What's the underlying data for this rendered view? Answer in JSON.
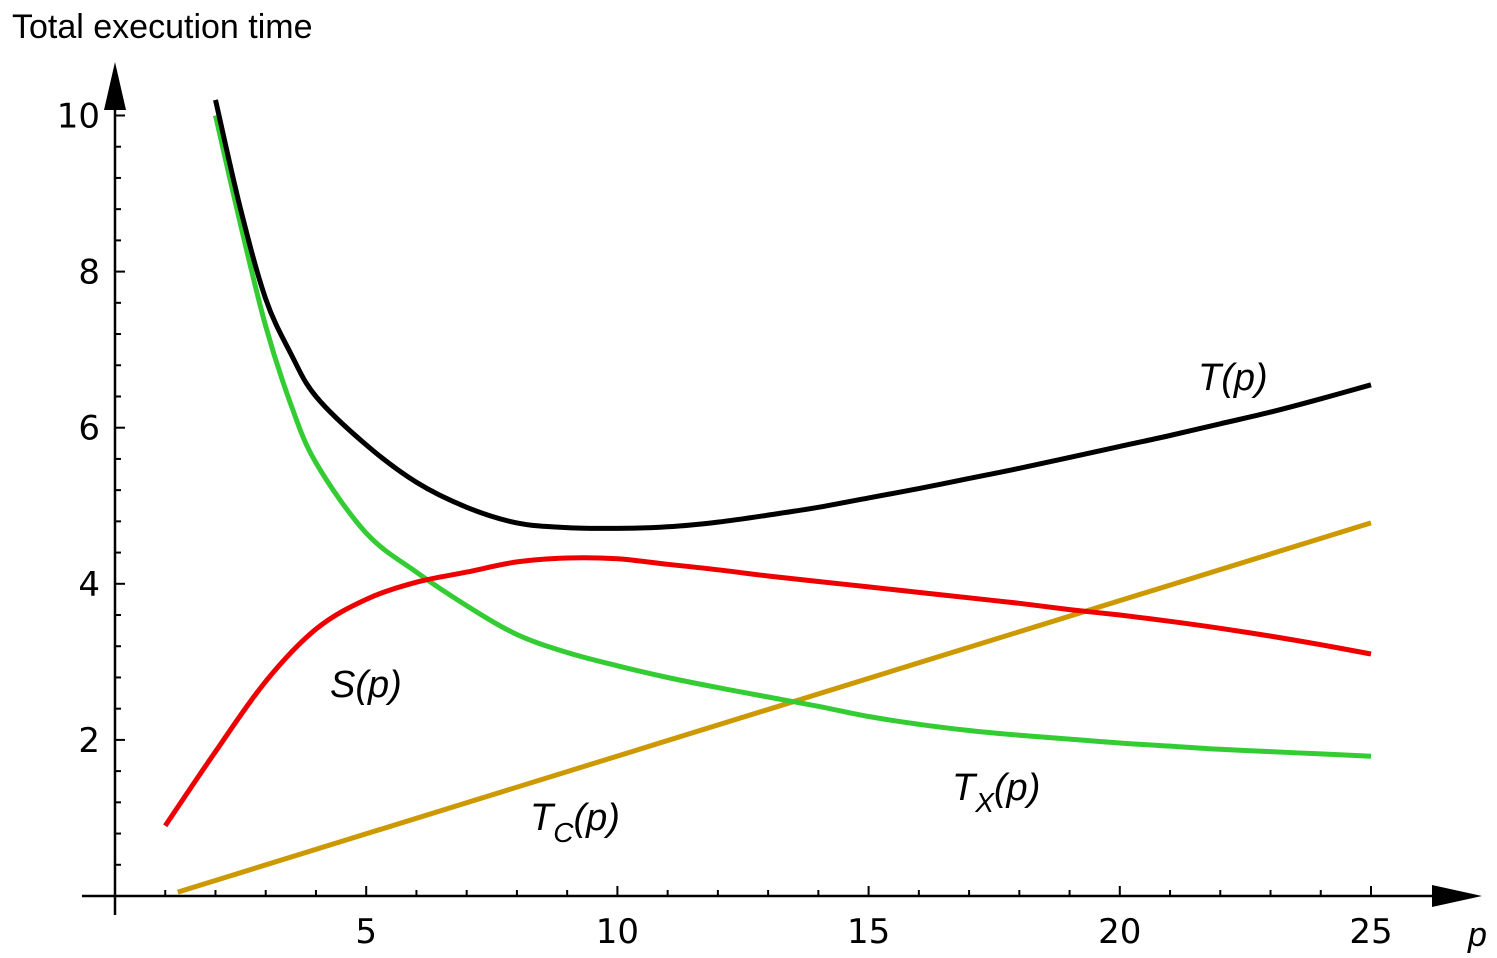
{
  "chart_data": {
    "type": "line",
    "title": "",
    "ylabel": "Total execution time",
    "xlabel": "p",
    "xlim": [
      0,
      25.5
    ],
    "ylim": [
      0,
      10.3
    ],
    "x_ticks": [
      5,
      10,
      15,
      20,
      25
    ],
    "x_tick_labels": [
      "5",
      "10",
      "15",
      "20",
      "25"
    ],
    "y_ticks": [
      2,
      4,
      6,
      8,
      10
    ],
    "y_tick_labels": [
      "2",
      "4",
      "6",
      "8",
      "10"
    ],
    "grid": false,
    "legend": "none",
    "series": [
      {
        "key": "T",
        "label_main": "T(p)",
        "label_sub": "",
        "label_tail": "",
        "color": "#000000",
        "x": [
          2,
          2.5,
          3,
          3.5,
          4,
          5,
          6,
          7,
          8,
          9,
          10,
          11,
          12,
          13,
          14,
          15,
          16,
          17,
          18,
          19,
          20,
          21,
          22,
          23,
          24,
          25
        ],
        "y": [
          10.2,
          8.8,
          7.65,
          6.95,
          6.4,
          5.78,
          5.3,
          4.98,
          4.78,
          4.72,
          4.71,
          4.73,
          4.79,
          4.88,
          4.98,
          5.1,
          5.22,
          5.35,
          5.48,
          5.62,
          5.76,
          5.9,
          6.05,
          6.2,
          6.37,
          6.55
        ]
      },
      {
        "key": "Tx",
        "label_main": "T",
        "label_sub": "X",
        "label_tail": "(p)",
        "color": "#33cc33",
        "x": [
          2,
          2.5,
          3,
          3.5,
          4,
          5,
          6,
          7,
          8,
          9,
          10,
          11,
          12,
          13,
          14,
          15,
          16,
          17,
          18,
          19,
          20,
          21,
          22,
          23,
          24,
          25
        ],
        "y": [
          10.0,
          8.6,
          7.3,
          6.3,
          5.55,
          4.65,
          4.15,
          3.72,
          3.35,
          3.12,
          2.95,
          2.8,
          2.67,
          2.55,
          2.43,
          2.3,
          2.2,
          2.12,
          2.06,
          2.01,
          1.96,
          1.92,
          1.88,
          1.85,
          1.82,
          1.79
        ]
      },
      {
        "key": "S",
        "label_main": "S(p)",
        "label_sub": "",
        "label_tail": "",
        "color": "#ee0000",
        "x": [
          1,
          2,
          3,
          4,
          5,
          6,
          7,
          8,
          9,
          10,
          11,
          12,
          13,
          14,
          15,
          16,
          17,
          18,
          19,
          20,
          21,
          22,
          23,
          24,
          25
        ],
        "y": [
          0.9,
          1.85,
          2.75,
          3.42,
          3.8,
          4.02,
          4.15,
          4.28,
          4.33,
          4.32,
          4.25,
          4.18,
          4.1,
          4.03,
          3.96,
          3.89,
          3.82,
          3.75,
          3.67,
          3.6,
          3.52,
          3.43,
          3.33,
          3.22,
          3.1
        ]
      },
      {
        "key": "Tc",
        "label_main": "T",
        "label_sub": "C",
        "label_tail": "(p)",
        "color": "#cc9900",
        "x": [
          1.25,
          25
        ],
        "y": [
          0.05,
          4.78
        ]
      }
    ]
  }
}
